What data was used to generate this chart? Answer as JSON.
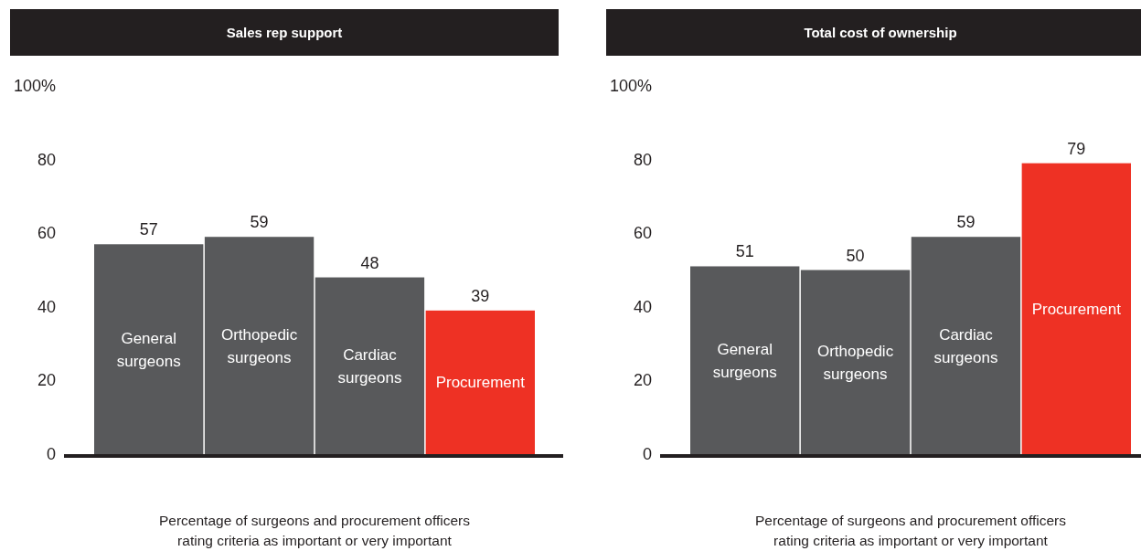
{
  "chart_data": [
    {
      "type": "bar",
      "title": "Sales rep support",
      "categories": [
        "General surgeons",
        "Orthopedic surgeons",
        "Cardiac surgeons",
        "Procurement"
      ],
      "values": [
        57,
        59,
        48,
        39
      ],
      "colors": [
        "#58595b",
        "#58595b",
        "#58595b",
        "#ee3124"
      ],
      "ylim": [
        0,
        100
      ],
      "yticks": [
        0,
        20,
        40,
        60,
        80,
        {
          "value": 100,
          "label": "100%"
        }
      ],
      "data_labels": true,
      "annotations": [
        "Percentage of surgeons and procurement officers rating criteria as important or very important"
      ]
    },
    {
      "type": "bar",
      "title": "Total cost of ownership",
      "categories": [
        "General surgeons",
        "Orthopedic surgeons",
        "Cardiac surgeons",
        "Procurement"
      ],
      "values": [
        51,
        50,
        59,
        79
      ],
      "colors": [
        "#58595b",
        "#58595b",
        "#58595b",
        "#ee3124"
      ],
      "ylim": [
        0,
        100
      ],
      "yticks": [
        0,
        20,
        40,
        60,
        80,
        {
          "value": 100,
          "label": "100%"
        }
      ],
      "data_labels": true,
      "annotations": [
        "Percentage of surgeons and procurement officers rating criteria as important or very important"
      ]
    }
  ]
}
